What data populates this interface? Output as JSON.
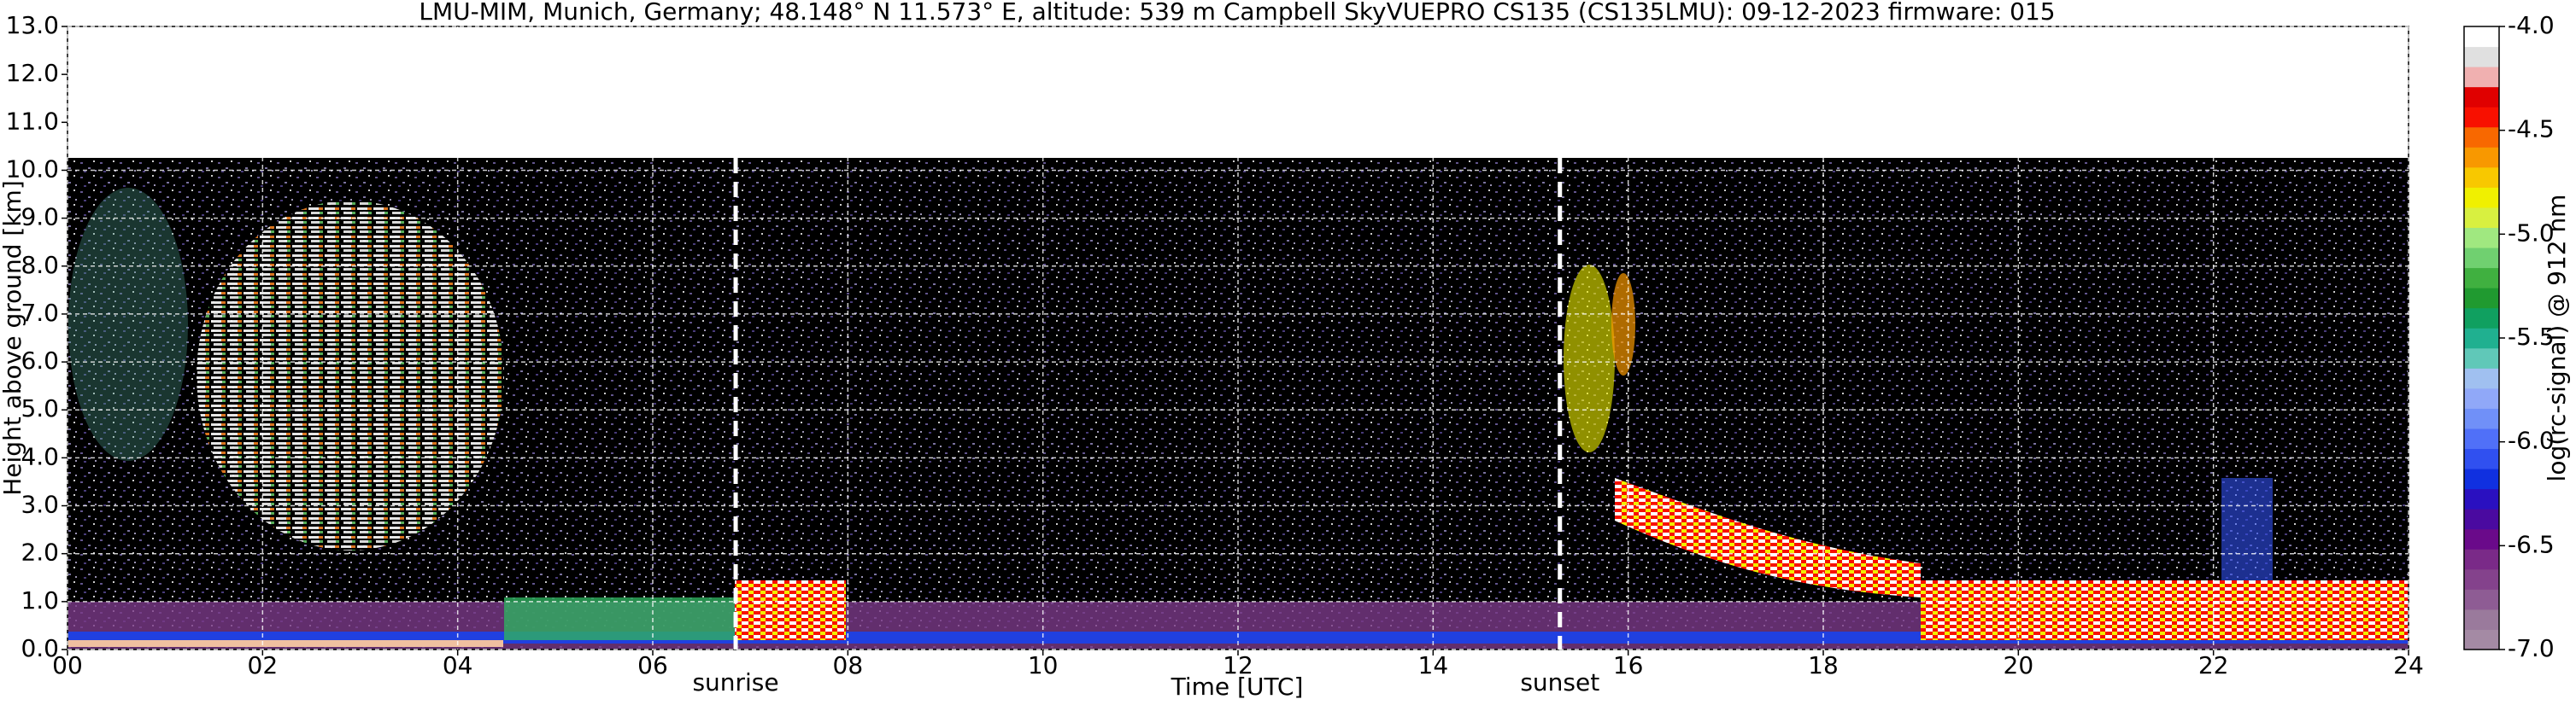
{
  "chart_data": {
    "type": "heatmap",
    "title": "LMU-MIM, Munich, Germany; 48.148° N 11.573° E, altitude: 539 m    Campbell SkyVUEPRO CS135 (CS135LMU): 09-12-2023    firmware: 015",
    "x_label": "Time [UTC]",
    "y_label": "Height above ground [km]",
    "colorbar_label": "log(rc-signal) @ 912 nm",
    "xlim": [
      0,
      24
    ],
    "xticks": [
      {
        "value": 0,
        "label": "00"
      },
      {
        "value": 2,
        "label": "02"
      },
      {
        "value": 4,
        "label": "04"
      },
      {
        "value": 6,
        "label": "06"
      },
      {
        "value": 8,
        "label": "08"
      },
      10,
      12,
      14,
      16,
      18,
      20,
      22,
      24
    ],
    "ylim": [
      0,
      13
    ],
    "yticks": [
      {
        "value": 0,
        "label": "0.0"
      },
      {
        "value": 1,
        "label": "1.0"
      },
      {
        "value": 2,
        "label": "2.0"
      },
      {
        "value": 3,
        "label": "3.0"
      },
      {
        "value": 4,
        "label": "4.0"
      },
      {
        "value": 5,
        "label": "5.0"
      },
      {
        "value": 6,
        "label": "6.0"
      },
      {
        "value": 7,
        "label": "7.0"
      },
      {
        "value": 8,
        "label": "8.0"
      },
      {
        "value": 9,
        "label": "9.0"
      },
      {
        "value": 10,
        "label": "10.0"
      },
      {
        "value": 11,
        "label": "11.0"
      },
      {
        "value": 12,
        "label": "12.0"
      },
      {
        "value": 13,
        "label": "13.0"
      }
    ],
    "clim": [
      -7,
      -4
    ],
    "cticks": [
      {
        "value": -7,
        "label": "-7.0"
      },
      {
        "value": -6.5,
        "label": "-6.5"
      },
      {
        "value": -6,
        "label": "-6.0"
      },
      {
        "value": -5.5,
        "label": "-5.5"
      },
      {
        "value": -5,
        "label": "-5.0"
      },
      {
        "value": -4.5,
        "label": "-4.5"
      },
      {
        "value": -4,
        "label": "-4.0"
      }
    ],
    "colormap": [
      "#a48aa4",
      "#9a7a9c",
      "#8e5c94",
      "#84428c",
      "#7a2a88",
      "#6a0a8a",
      "#4a0aa0",
      "#2a10c0",
      "#1030e0",
      "#3050f0",
      "#5070f8",
      "#7090f8",
      "#90a8f8",
      "#a0c0f0",
      "#60c8b8",
      "#20b090",
      "#10a060",
      "#209a30",
      "#40b040",
      "#70d070",
      "#a0e880",
      "#d8f040",
      "#f0f000",
      "#f8c800",
      "#f89800",
      "#f86800",
      "#f81000",
      "#e00000",
      "#f0b0b0",
      "#e0e0e0",
      "#ffffff"
    ],
    "grid": true,
    "annotations": [
      {
        "x": 6.85,
        "label": "sunrise"
      },
      {
        "x": 15.3,
        "label": "sunset"
      }
    ]
  }
}
